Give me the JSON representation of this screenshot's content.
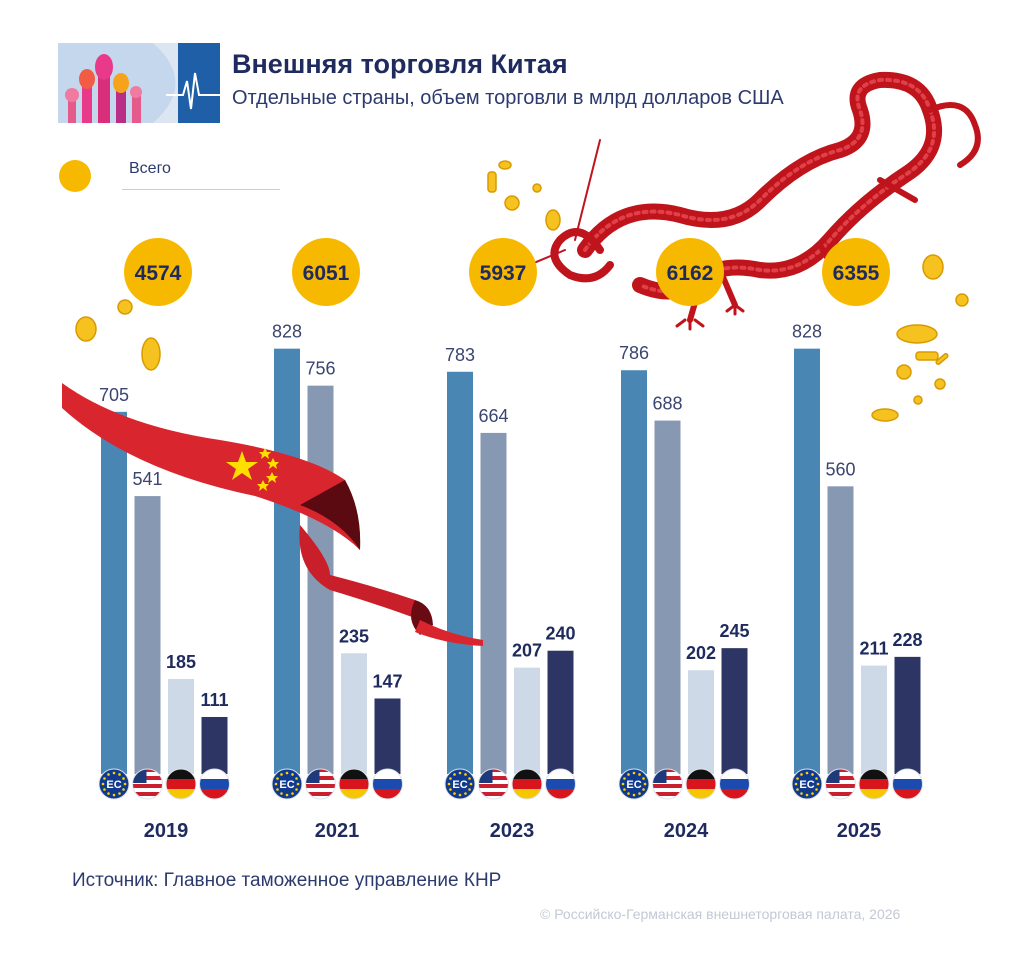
{
  "header": {
    "title": "Внешняя торговля Китая",
    "subtitle": "Отдельные страны, объем торговли в млрд долларов США"
  },
  "legend": {
    "label": "Всего",
    "color": "#f7b900"
  },
  "chart_data": {
    "type": "bar",
    "categories": [
      "2019",
      "2021",
      "2023",
      "2024",
      "2025"
    ],
    "totals": [
      "4574",
      "6051",
      "5937",
      "6162",
      "6355"
    ],
    "series": [
      {
        "flag": "EC",
        "icon": "eu-flag-icon",
        "color": "#4a86b4",
        "values": [
          705,
          828,
          783,
          786,
          828
        ]
      },
      {
        "flag": "US",
        "icon": "usa-flag-icon",
        "color": "#8799b2",
        "values": [
          541,
          756,
          664,
          688,
          560
        ]
      },
      {
        "flag": "DE",
        "icon": "germany-flag-icon",
        "color": "#cdd9e6",
        "values": [
          185,
          235,
          207,
          202,
          211
        ]
      },
      {
        "flag": "RU",
        "icon": "russia-flag-icon",
        "color": "#2c3564",
        "values": [
          111,
          147,
          240,
          245,
          228
        ]
      }
    ],
    "bold_labels": [
      "DE",
      "RU"
    ],
    "grid": false,
    "ylim": [
      0,
      900
    ]
  },
  "footer": {
    "source": "Источник: Главное таможенное управление КНР",
    "copyright": "© Российско-Германская внешнеторговая палата, 2026"
  }
}
